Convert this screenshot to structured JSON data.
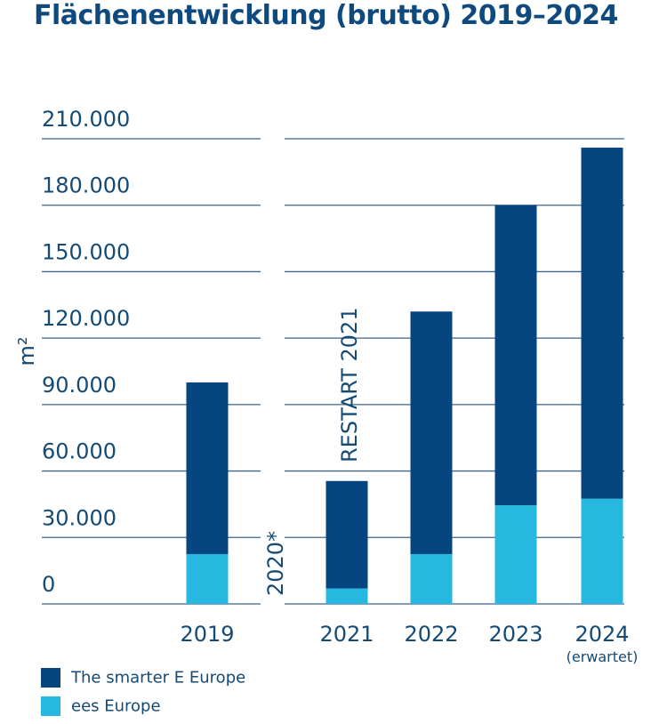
{
  "chart_data": {
    "type": "bar",
    "stacked": true,
    "title": "Flächenentwicklung (brutto) 2019–2024",
    "ylabel": "m²",
    "xlabel": "",
    "ylim": [
      0,
      210000
    ],
    "yticks": [
      0,
      30000,
      60000,
      90000,
      120000,
      150000,
      180000,
      210000
    ],
    "ytick_labels": [
      "0",
      "30.000",
      "60.000",
      "90.000",
      "120.000",
      "150.000",
      "180.000",
      "210.000"
    ],
    "grid": true,
    "categories": [
      "2019",
      "2021",
      "2022",
      "2023",
      "2024"
    ],
    "category_sublabels": [
      "",
      "",
      "",
      "",
      "(erwartet)"
    ],
    "series": [
      {
        "name": "ees Europe",
        "color": "#26b8de",
        "values": [
          22500,
          7000,
          22500,
          44500,
          47500
        ]
      },
      {
        "name": "The smarter E Europe",
        "color": "#054580",
        "values": [
          77500,
          48500,
          109500,
          135500,
          158500
        ]
      }
    ],
    "annotations": [
      {
        "text": "2020*",
        "orientation": "vertical"
      },
      {
        "text": "RESTART 2021",
        "orientation": "vertical"
      }
    ],
    "legend": {
      "position": "bottom-left",
      "entries": [
        {
          "label": "The smarter E Europe",
          "color": "#054580"
        },
        {
          "label": "ees Europe",
          "color": "#26b8de"
        }
      ]
    }
  }
}
